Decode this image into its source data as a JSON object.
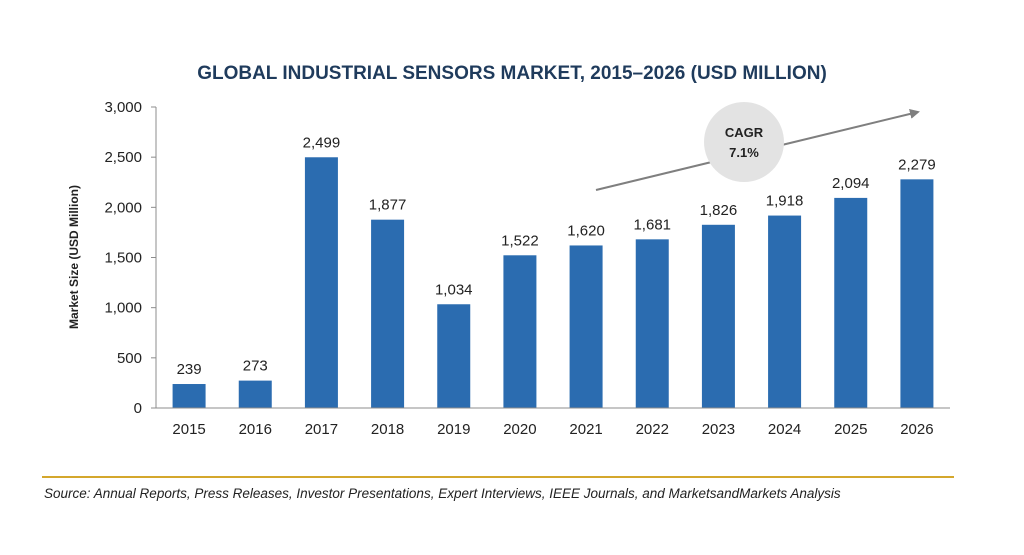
{
  "chart_data": {
    "type": "bar",
    "title": "GLOBAL INDUSTRIAL SENSORS MARKET, 2015–2026 (USD MILLION)",
    "ylabel": "Market Size (USD Million)",
    "xlabel": "",
    "categories": [
      "2015",
      "2016",
      "2017",
      "2018",
      "2019",
      "2020",
      "2021",
      "2022",
      "2023",
      "2024",
      "2025",
      "2026"
    ],
    "values": [
      239,
      273,
      2499,
      1877,
      1034,
      1522,
      1620,
      1681,
      1826,
      1918,
      2094,
      2279
    ],
    "value_labels": [
      "239",
      "273",
      "2,499",
      "1,877",
      "1,034",
      "1,522",
      "1,620",
      "1,681",
      "1,826",
      "1,918",
      "2,094",
      "2,279"
    ],
    "ylim": [
      0,
      3000
    ],
    "yticks": [
      0,
      500,
      1000,
      1500,
      2000,
      2500,
      3000
    ],
    "ytick_labels": [
      "0",
      "500",
      "1,000",
      "1,500",
      "2,000",
      "2,500",
      "3,000"
    ],
    "grid": false,
    "bar_color": "#2b6cb0",
    "annotation": {
      "label": "CAGR",
      "value": "7.1%",
      "circle_color": "#e3e3e3",
      "arrow_color": "#7f7f7f"
    }
  },
  "source": "Source: Annual Reports, Press Releases, Investor Presentations, Expert Interviews, IEEE Journals, and MarketsandMarkets Analysis",
  "accent_color": "#d4a72c"
}
